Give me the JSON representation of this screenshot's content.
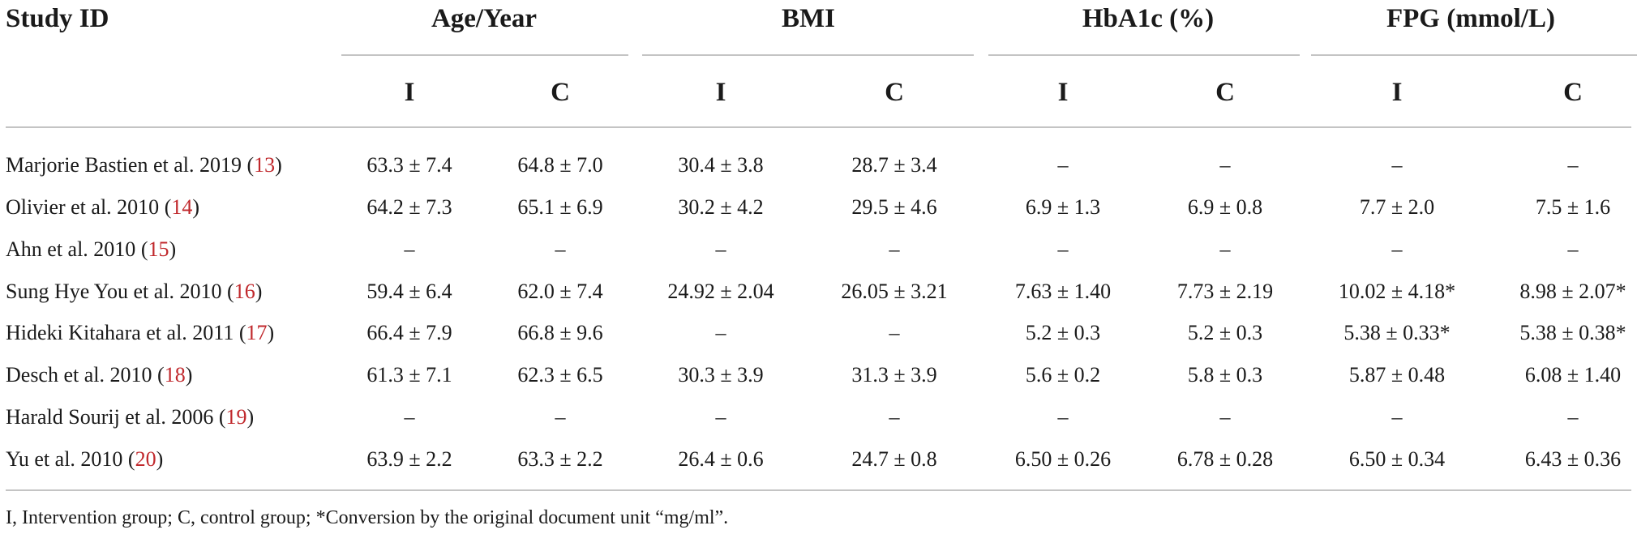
{
  "header": {
    "study_id": "Study ID",
    "groups": [
      "Age/Year",
      "BMI",
      "HbA1c (%)",
      "FPG (mmol/L)"
    ],
    "subheaders": [
      "I",
      "C",
      "I",
      "C",
      "I",
      "C",
      "I",
      "C"
    ]
  },
  "rows": [
    {
      "study": "Marjorie Bastien et al. 2019",
      "ref": "13",
      "values": [
        "63.3 ± 7.4",
        "64.8 ± 7.0",
        "30.4 ± 3.8",
        "28.7 ± 3.4",
        "–",
        "–",
        "–",
        "–"
      ]
    },
    {
      "study": "Olivier et al. 2010",
      "ref": "14",
      "values": [
        "64.2 ± 7.3",
        "65.1 ± 6.9",
        "30.2 ± 4.2",
        "29.5 ± 4.6",
        "6.9 ± 1.3",
        "6.9 ± 0.8",
        "7.7 ± 2.0",
        "7.5 ± 1.6"
      ]
    },
    {
      "study": "Ahn et al. 2010",
      "ref": "15",
      "values": [
        "–",
        "–",
        "–",
        "–",
        "–",
        "–",
        "–",
        "–"
      ]
    },
    {
      "study": "Sung Hye You et al. 2010",
      "ref": "16",
      "values": [
        "59.4 ± 6.4",
        "62.0 ± 7.4",
        "24.92 ± 2.04",
        "26.05 ± 3.21",
        "7.63 ± 1.40",
        "7.73 ± 2.19",
        "10.02 ± 4.18*",
        "8.98 ± 2.07*"
      ]
    },
    {
      "study": "Hideki Kitahara et al. 2011",
      "ref": "17",
      "values": [
        "66.4 ± 7.9",
        "66.8 ± 9.6",
        "–",
        "–",
        "5.2 ± 0.3",
        "5.2 ± 0.3",
        "5.38 ± 0.33*",
        "5.38 ± 0.38*"
      ]
    },
    {
      "study": "Desch et al. 2010",
      "ref": "18",
      "values": [
        "61.3 ± 7.1",
        "62.3 ± 6.5",
        "30.3 ± 3.9",
        "31.3 ± 3.9",
        "5.6 ± 0.2",
        "5.8 ± 0.3",
        "5.87 ± 0.48",
        "6.08 ± 1.40"
      ]
    },
    {
      "study": "Harald Sourij et al. 2006",
      "ref": "19",
      "values": [
        "–",
        "–",
        "–",
        "–",
        "–",
        "–",
        "–",
        "–"
      ]
    },
    {
      "study": "Yu et al. 2010",
      "ref": "20",
      "values": [
        "63.9 ± 2.2",
        "63.3 ± 2.2",
        "26.4 ± 0.6",
        "24.7 ± 0.8",
        "6.50 ± 0.26",
        "6.78 ± 0.28",
        "6.50 ± 0.34",
        "6.43 ± 0.36"
      ]
    }
  ],
  "footnote": "I, Intervention group; C, control group; *Conversion by the original document unit “mg/ml”."
}
